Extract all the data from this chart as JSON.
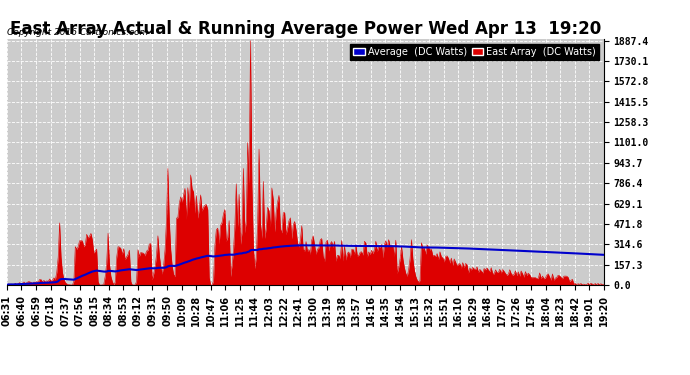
{
  "title": "East Array Actual & Running Average Power Wed Apr 13  19:20",
  "copyright": "Copyright 2016 Cartronics.com",
  "legend_avg": "Average  (DC Watts)",
  "legend_east": "East Array  (DC Watts)",
  "yticks": [
    0.0,
    157.3,
    314.6,
    471.8,
    629.1,
    786.4,
    943.7,
    1101.0,
    1258.3,
    1415.5,
    1572.8,
    1730.1,
    1887.4
  ],
  "ymax": 1887.4,
  "bg_color": "#ffffff",
  "plot_bg_color": "#cccccc",
  "grid_color": "#ffffff",
  "red_color": "#dd0000",
  "blue_color": "#0000cc",
  "title_fontsize": 12,
  "tick_fontsize": 7,
  "time_labels": [
    "06:31",
    "06:40",
    "06:59",
    "07:18",
    "07:37",
    "07:56",
    "08:15",
    "08:34",
    "08:53",
    "09:12",
    "09:31",
    "09:50",
    "10:09",
    "10:28",
    "10:47",
    "11:06",
    "11:25",
    "11:44",
    "12:03",
    "12:22",
    "12:41",
    "13:00",
    "13:19",
    "13:38",
    "13:57",
    "14:16",
    "14:35",
    "14:54",
    "15:13",
    "15:32",
    "15:51",
    "16:10",
    "16:29",
    "16:48",
    "17:07",
    "17:26",
    "17:45",
    "18:04",
    "18:23",
    "18:42",
    "19:01",
    "19:20"
  ]
}
